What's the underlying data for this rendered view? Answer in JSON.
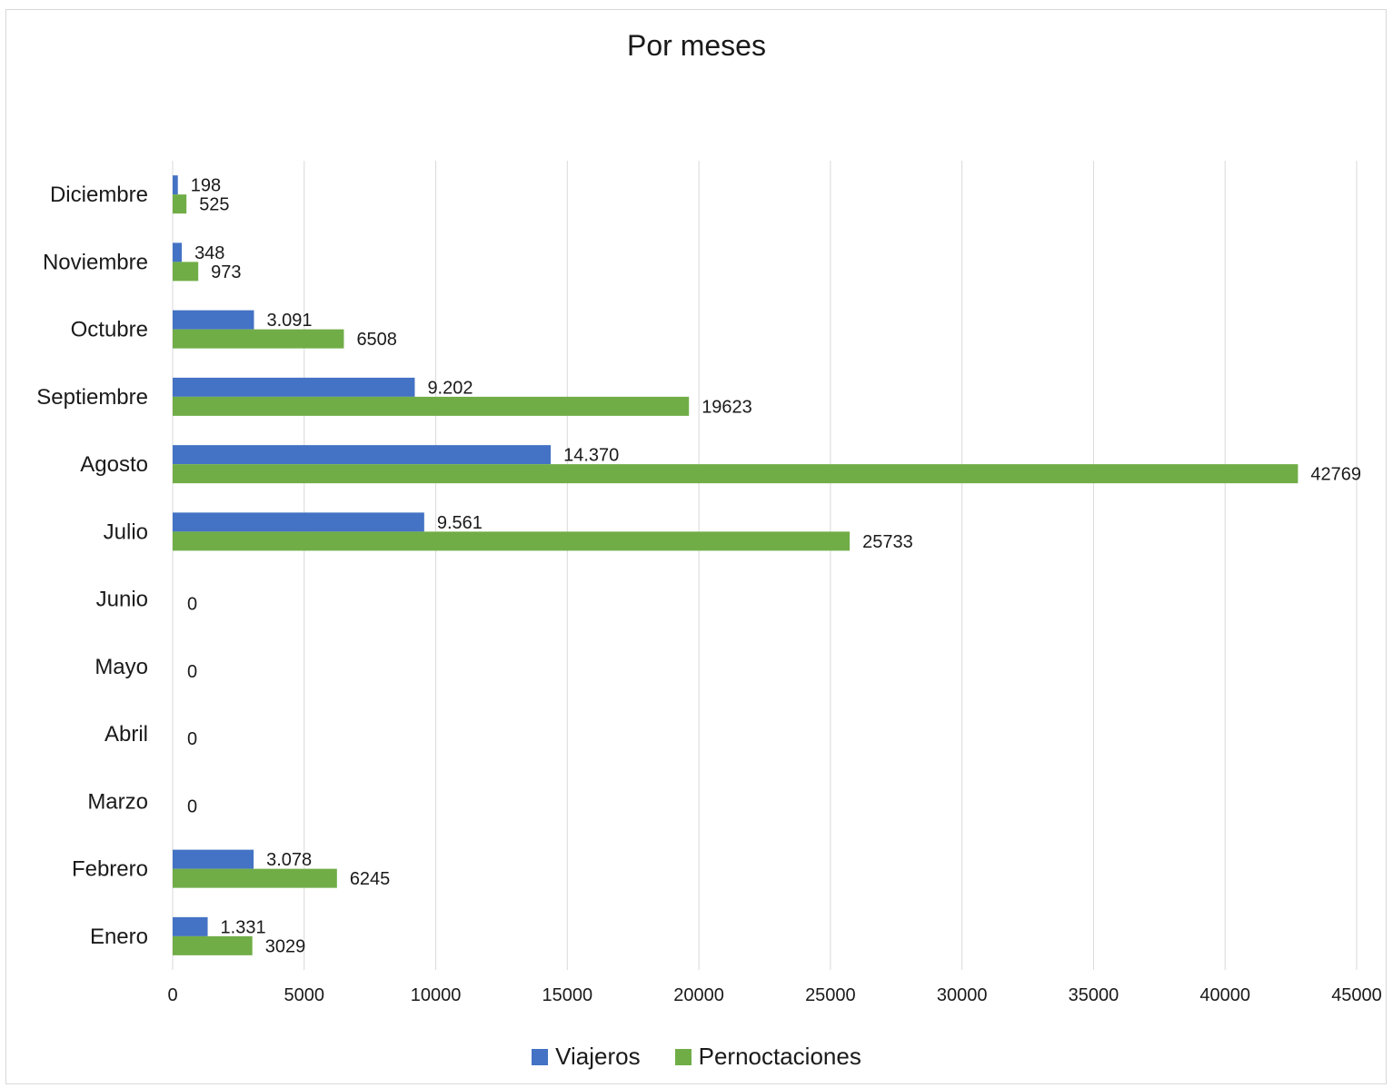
{
  "chart_data": {
    "type": "bar",
    "orientation": "horizontal",
    "title": "Por meses",
    "categories": [
      "Enero",
      "Febrero",
      "Marzo",
      "Abril",
      "Mayo",
      "Junio",
      "Julio",
      "Agosto",
      "Septiembre",
      "Octubre",
      "Noviembre",
      "Diciembre"
    ],
    "series": [
      {
        "name": "Viajeros",
        "color": "#4472c4",
        "values": [
          1331,
          3078,
          0,
          0,
          0,
          0,
          9561,
          14370,
          9202,
          3091,
          348,
          198
        ],
        "labels": [
          "1.331",
          "3.078",
          "",
          "",
          "",
          "",
          "9.561",
          "14.370",
          "9.202",
          "3.091",
          "348",
          "198"
        ]
      },
      {
        "name": "Pernoctaciones",
        "color": "#70ad47",
        "values": [
          3029,
          6245,
          0,
          0,
          0,
          0,
          25733,
          42769,
          19623,
          6508,
          973,
          525
        ],
        "labels": [
          "3029",
          "6245",
          "0",
          "0",
          "0",
          "0",
          "25733",
          "42769",
          "19623",
          "6508",
          "973",
          "525"
        ]
      }
    ],
    "xlim": [
      0,
      45000
    ],
    "xticks": [
      0,
      5000,
      10000,
      15000,
      20000,
      25000,
      30000,
      35000,
      40000,
      45000
    ],
    "grid": true,
    "legend": "bottom"
  }
}
